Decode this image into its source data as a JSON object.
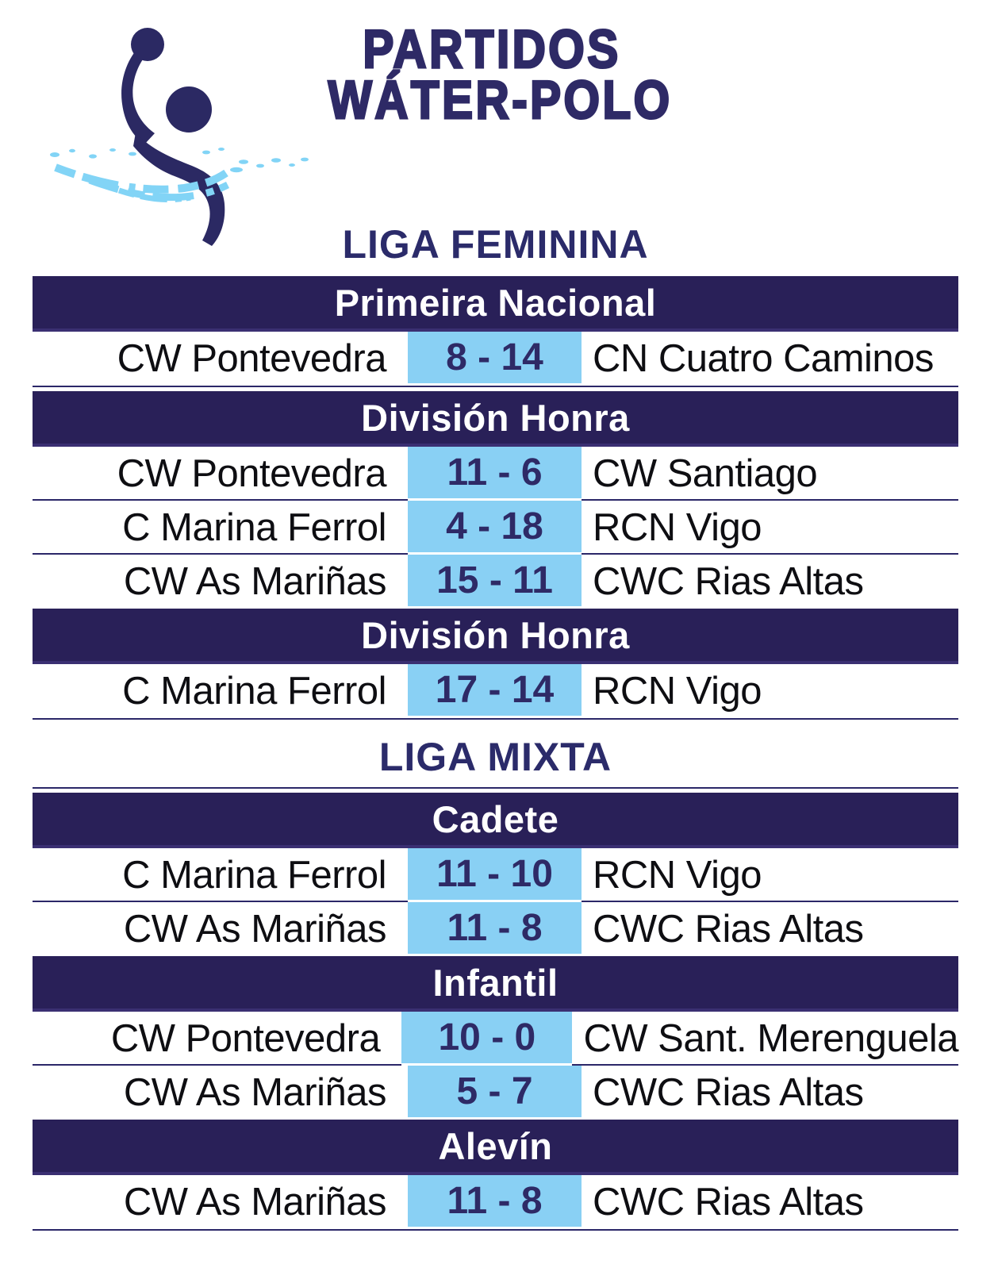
{
  "header": {
    "title_line1": "PARTIDOS",
    "title_line2": "WÁTER-POLO",
    "logo": "water-polo-player-logo"
  },
  "colors": {
    "navy_banner": "#292058",
    "banner_bottom_border": "#3a2f72",
    "rule_line": "#2b2768",
    "navy_text": "#2e2a66",
    "heading_text": "#2b2b6a",
    "team_text": "#0e0e12",
    "score_background": "#89d0f4",
    "water_blue": "#82d4f6",
    "banner_text": "#ffffff"
  },
  "leagues": [
    {
      "name": "LIGA FEMININA",
      "heading_rule_below": false,
      "sections": [
        {
          "title": "Primeira Nacional",
          "rule_after": true,
          "matches": [
            {
              "home": "CW Pontevedra",
              "score": "8 - 14",
              "away": "CN Cuatro Caminos"
            }
          ]
        },
        {
          "title": "División Honra",
          "rule_after": false,
          "matches": [
            {
              "home": "CW Pontevedra",
              "score": "11 - 6",
              "away": "CW Santiago"
            },
            {
              "home": "C Marina Ferrol",
              "score": "4 - 18",
              "away": "RCN Vigo"
            },
            {
              "home": "CW As Mariñas",
              "score": "15 - 11",
              "away": "CWC Rias Altas"
            }
          ]
        },
        {
          "title": "División Honra",
          "rule_after": true,
          "matches": [
            {
              "home": "C Marina Ferrol",
              "score": "17 - 14",
              "away": "RCN Vigo"
            }
          ]
        }
      ]
    },
    {
      "name": "LIGA MIXTA",
      "heading_rule_below": true,
      "sections": [
        {
          "title": "Cadete",
          "rule_after": false,
          "matches": [
            {
              "home": "C Marina Ferrol",
              "score": "11 - 10",
              "away": "RCN Vigo"
            },
            {
              "home": "CW As Mariñas",
              "score": "11 - 8",
              "away": "CWC Rias Altas"
            }
          ]
        },
        {
          "title": "Infantil",
          "rule_after": false,
          "matches": [
            {
              "home": "CW Pontevedra",
              "score": "10 - 0",
              "away": "CW Sant. Merenguela"
            },
            {
              "home": "CW As Mariñas",
              "score": "5 - 7",
              "away": "CWC Rias Altas"
            }
          ]
        },
        {
          "title": "Alevín",
          "rule_after": true,
          "matches": [
            {
              "home": "CW As Mariñas",
              "score": "11 - 8",
              "away": "CWC Rias Altas"
            }
          ]
        }
      ]
    }
  ]
}
